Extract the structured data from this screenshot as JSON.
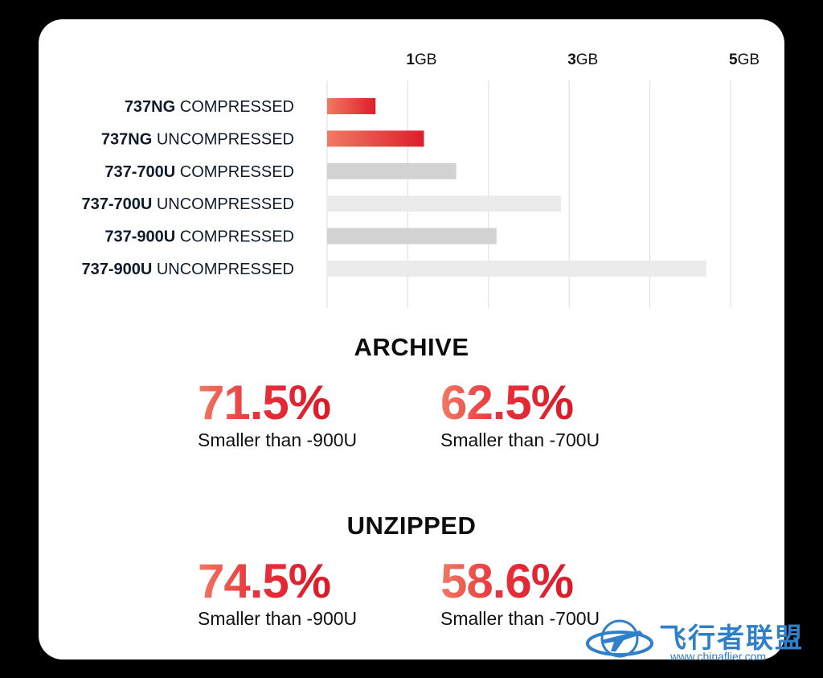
{
  "chart_data": {
    "type": "bar",
    "orientation": "horizontal",
    "unit": "GB",
    "xlim": [
      0,
      5
    ],
    "x_ticks": [
      {
        "value": 1,
        "label": "1GB"
      },
      {
        "value": 3,
        "label": "3GB"
      },
      {
        "value": 5,
        "label": "5GB"
      }
    ],
    "grid": true,
    "categories": [
      {
        "bold": "737NG",
        "rest": " COMPRESSED",
        "value": 0.6,
        "style": "red"
      },
      {
        "bold": "737NG",
        "rest": " UNCOMPRESSED",
        "value": 1.2,
        "style": "red"
      },
      {
        "bold": "737-700U",
        "rest": " COMPRESSED",
        "value": 1.6,
        "style": "gray-dark"
      },
      {
        "bold": "737-700U",
        "rest": " UNCOMPRESSED",
        "value": 2.9,
        "style": "gray-light"
      },
      {
        "bold": "737-900U",
        "rest": " COMPRESSED",
        "value": 2.1,
        "style": "gray-dark"
      },
      {
        "bold": "737-900U",
        "rest": " UNCOMPRESSED",
        "value": 4.7,
        "style": "gray-light"
      }
    ],
    "colors": {
      "red_start": "#f07a62",
      "red_end": "#dc1e2c",
      "gray_dark": "#d2d2d2",
      "gray_light": "#ebebeb",
      "grid": "#dcdcdc",
      "label": "#0f1b2a"
    }
  },
  "archive": {
    "title": "ARCHIVE",
    "stats": [
      {
        "value": "71.5%",
        "caption": "Smaller than -900U"
      },
      {
        "value": "62.5%",
        "caption": "Smaller than -700U"
      }
    ]
  },
  "unzipped": {
    "title": "UNZIPPED",
    "stats": [
      {
        "value": "74.5%",
        "caption": "Smaller than -900U"
      },
      {
        "value": "58.6%",
        "caption": "Smaller than -700U"
      }
    ]
  },
  "watermark": {
    "title": "飞行者联盟",
    "url": "www.chinaflier.com"
  }
}
